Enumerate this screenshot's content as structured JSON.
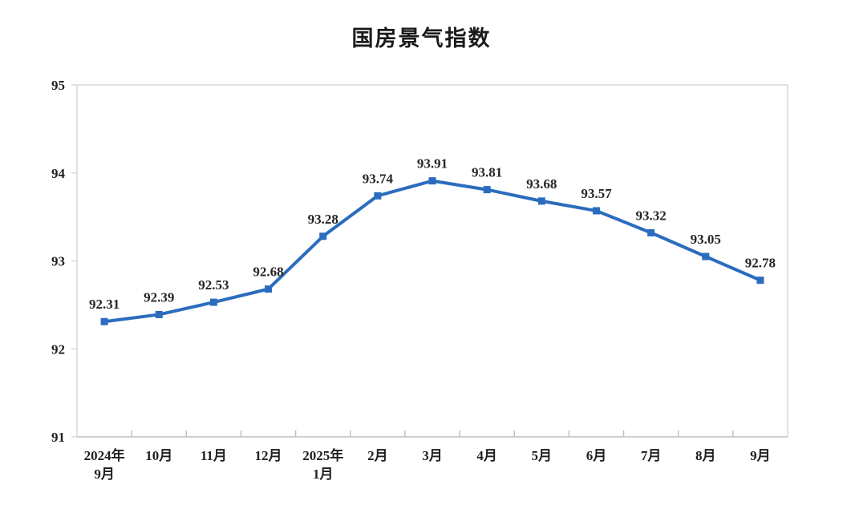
{
  "chart_data": {
    "type": "line",
    "title": "国房景气指数",
    "categories": [
      "2024年\n9月",
      "10月",
      "11月",
      "12月",
      "2025年\n1月",
      "2月",
      "3月",
      "4月",
      "5月",
      "6月",
      "7月",
      "8月",
      "9月"
    ],
    "values": [
      92.31,
      92.39,
      92.53,
      92.68,
      93.28,
      93.74,
      93.91,
      93.81,
      93.68,
      93.57,
      93.32,
      93.05,
      92.78
    ],
    "data_labels": [
      "92.31",
      "92.39",
      "92.53",
      "92.68",
      "93.28",
      "93.74",
      "93.91",
      "93.81",
      "93.68",
      "93.57",
      "93.32",
      "93.05",
      "92.78"
    ],
    "xlabel": "",
    "ylabel": "",
    "ylim": [
      91,
      95
    ],
    "yticks": [
      91,
      92,
      93,
      94,
      95
    ],
    "legend": "none",
    "grid": "off",
    "marker": "square",
    "line_color": "#2b6cbe",
    "axis_color": "#d9d9d9",
    "bottom_axis_color": "#bfbfbf",
    "text_color": "#1f1f1f",
    "background_color": "#ffffff"
  }
}
